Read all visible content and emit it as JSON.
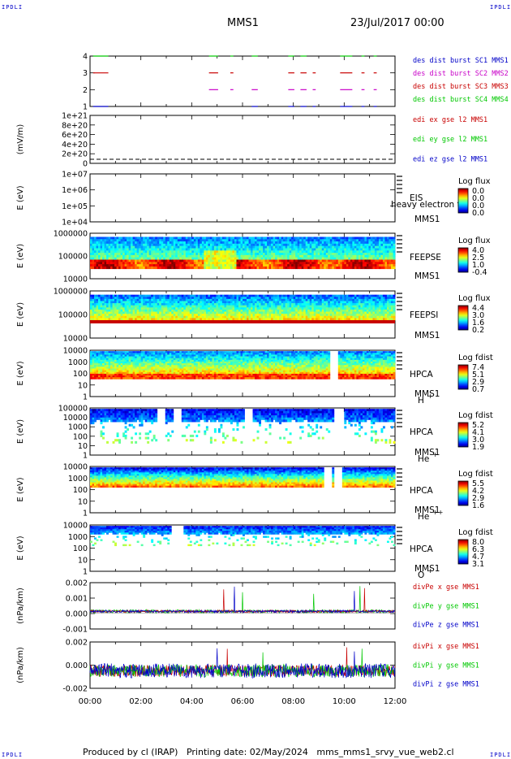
{
  "header": {
    "corner_label": "IPDLI",
    "spacecraft": "MMS1",
    "date": "23/Jul/2017 00:00"
  },
  "footer": {
    "text": "Produced by cl (IRAP)   Printing date: 02/May/2024   mms_mms1_srvy_vue_web2.cl"
  },
  "time_axis": {
    "ticks": [
      "00:00",
      "02:00",
      "04:00",
      "06:00",
      "08:00",
      "10:00",
      "12:00"
    ]
  },
  "chart_data": [
    {
      "type": "scatter",
      "panel": "burst",
      "ylabel": "",
      "yticks": [
        "1",
        "2",
        "3",
        "4"
      ],
      "legend": [
        {
          "name": "des dist burst SC1 MMS1",
          "color": "#0000c8"
        },
        {
          "name": "des dist burst SC2 MMS2",
          "color": "#c800c8"
        },
        {
          "name": "des dist burst SC3 MMS3",
          "color": "#c80000"
        },
        {
          "name": "des dist burst SC4 MMS4",
          "color": "#00c800"
        }
      ]
    },
    {
      "type": "line",
      "panel": "edi-e",
      "ylabel": "(mV/m)",
      "yticks": [
        "0",
        "2e+20",
        "4e+20",
        "6e+20",
        "8e+20",
        "1e+21"
      ],
      "legend": [
        {
          "name": "edi ex gse l2 MMS1",
          "color": "#c80000"
        },
        {
          "name": "edi ey gse l2 MMS1",
          "color": "#00c800"
        },
        {
          "name": "edi ez gse l2 MMS1",
          "color": "#0000c8"
        }
      ]
    },
    {
      "type": "heatmap",
      "panel": "eis",
      "ylabel": "E (eV)",
      "yticks": [
        "1e+04",
        "1e+05",
        "1e+06",
        "1e+07"
      ],
      "instrument": "EIS",
      "spacecraft": "MMS1",
      "note": "heavy electron to",
      "colorbar_title": "Log flux",
      "colorbar_ticks": [
        "0.0",
        "0.0",
        "0.0",
        "0.0"
      ]
    },
    {
      "type": "heatmap",
      "panel": "feepse",
      "ylabel": "E (eV)",
      "yticks": [
        "10000",
        "100000",
        "1000000"
      ],
      "instrument": "FEEPSE",
      "spacecraft": "MMS1",
      "colorbar_title": "Log flux",
      "colorbar_ticks": [
        "4.0",
        "2.5",
        "1.0",
        "-0.4"
      ]
    },
    {
      "type": "heatmap",
      "panel": "feepsi",
      "ylabel": "E (eV)",
      "yticks": [
        "10000",
        "100000",
        "1000000"
      ],
      "instrument": "FEEPSI",
      "spacecraft": "MMS1",
      "colorbar_title": "Log flux",
      "colorbar_ticks": [
        "4.4",
        "3.0",
        "1.6",
        "0.2"
      ]
    },
    {
      "type": "heatmap",
      "panel": "hpca-h",
      "ylabel": "E (eV)",
      "yticks": [
        "1",
        "10",
        "100",
        "1000",
        "10000"
      ],
      "instrument": "HPCA",
      "spacecraft": "MMS1",
      "species": "H",
      "charge": "+",
      "colorbar_title": "Log fdist",
      "colorbar_ticks": [
        "7.4",
        "5.1",
        "2.9",
        "0.7"
      ]
    },
    {
      "type": "heatmap",
      "panel": "hpca-he",
      "ylabel": "E (eV)",
      "yticks": [
        "1",
        "10",
        "100",
        "1000",
        "10000",
        "100000"
      ],
      "instrument": "HPCA",
      "spacecraft": "MMS1",
      "species": "He",
      "charge": "+",
      "colorbar_title": "Log fdist",
      "colorbar_ticks": [
        "5.2",
        "4.1",
        "3.0",
        "1.9"
      ]
    },
    {
      "type": "heatmap",
      "panel": "hpca-hepp",
      "ylabel": "E (eV)",
      "yticks": [
        "1",
        "10",
        "100",
        "1000",
        "10000"
      ],
      "instrument": "HPCA",
      "spacecraft": "MMS1",
      "species": "He",
      "charge": "++",
      "colorbar_title": "Log fdist",
      "colorbar_ticks": [
        "5.5",
        "4.2",
        "2.9",
        "1.6"
      ]
    },
    {
      "type": "heatmap",
      "panel": "hpca-o",
      "ylabel": "E (eV)",
      "yticks": [
        "1",
        "10",
        "100",
        "1000",
        "10000"
      ],
      "instrument": "HPCA",
      "spacecraft": "MMS1",
      "species": "O",
      "charge": "+",
      "colorbar_title": "Log fdist",
      "colorbar_ticks": [
        "8.0",
        "6.3",
        "4.7",
        "3.1"
      ]
    },
    {
      "type": "line",
      "panel": "divpe",
      "ylabel": "(nPa/km)",
      "yticks": [
        "-0.001",
        "0.000",
        "0.001",
        "0.002"
      ],
      "legend": [
        {
          "name": "divPe x gse MMS1",
          "color": "#c80000"
        },
        {
          "name": "divPe y gse MMS1",
          "color": "#00c800"
        },
        {
          "name": "divPe z gse MMS1",
          "color": "#0000c8"
        }
      ]
    },
    {
      "type": "line",
      "panel": "divpi",
      "ylabel": "(nPa/km)",
      "yticks": [
        "-0.002",
        "0.000",
        "0.002"
      ],
      "legend": [
        {
          "name": "divPi x gse MMS1",
          "color": "#c80000"
        },
        {
          "name": "divPi y gse MMS1",
          "color": "#00c800"
        },
        {
          "name": "divPi z gse MMS1",
          "color": "#0000c8"
        }
      ]
    }
  ]
}
